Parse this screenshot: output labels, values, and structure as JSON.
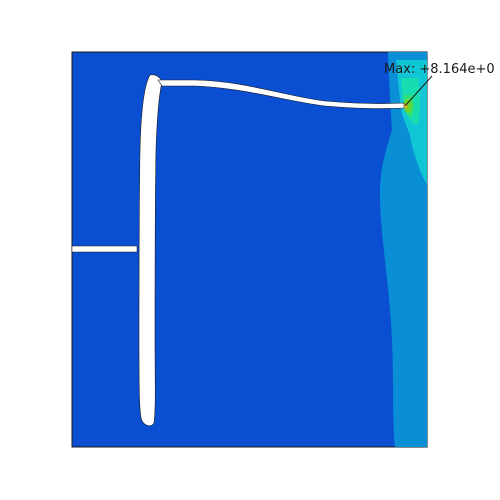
{
  "annotation": {
    "max_text": "Max: +8.164e+0"
  },
  "contour_colors": {
    "background": "#ffffff",
    "level_0": "#0a4fd1",
    "level_1": "#0a8fd6",
    "level_2": "#10c5d4",
    "level_3": "#16dcb0",
    "level_4": "#2ee07a",
    "level_5": "#6bd629",
    "level_6": "#f0e23a",
    "edge": "#1a1a1a",
    "crack": "#ffffff"
  }
}
